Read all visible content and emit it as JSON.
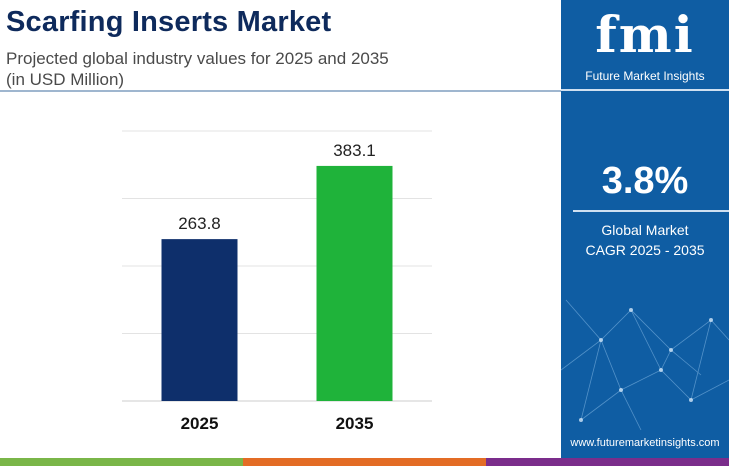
{
  "header": {
    "title": "Scarfing Inserts Market",
    "subtitle_line1": "Projected global industry values for 2025 and 2035",
    "subtitle_line2": "(in USD Million)"
  },
  "chart_data": {
    "type": "bar",
    "categories": [
      "2025",
      "2035"
    ],
    "values": [
      263.8,
      383.1
    ],
    "value_labels": [
      "263.8",
      "383.1"
    ],
    "bar_colors": [
      "#0e2f6b",
      "#1fb33a"
    ],
    "ylim": [
      0,
      440
    ],
    "grid": true,
    "unit": "USD Million"
  },
  "side_panel": {
    "logo_text": "fmi",
    "logo_subtitle": "Future Market Insights",
    "cagr_value": "3.8%",
    "cagr_label_line1": "Global Market",
    "cagr_label_line2": "CAGR 2025 - 2035",
    "website": "www.futuremarketinsights.com",
    "background_color": "#0f5da3"
  },
  "bottom_strip_colors": [
    "#7ab648",
    "#e36c25",
    "#7b2d8b"
  ]
}
